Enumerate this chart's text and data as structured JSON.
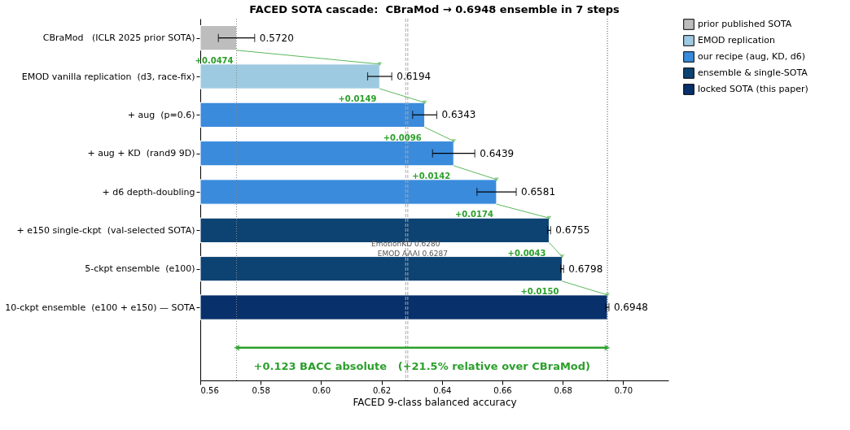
{
  "chart_data": {
    "type": "bar",
    "orientation": "horizontal",
    "title": "FACED SOTA cascade:  CBraMod → 0.6948 ensemble in 7 steps",
    "xlabel": "FACED 9-class balanced accuracy",
    "categories": [
      "CBraMod   (ICLR 2025 prior SOTA)",
      "EMOD vanilla replication  (d3, race-fix)",
      "+ aug  (p=0.6)",
      "+ aug + KD  (rand9 9D)",
      "+ d6 depth-doubling",
      "+ e150 single-ckpt  (val-selected SOTA)",
      "5-ckpt ensemble  (e100)",
      "10-ckpt ensemble  (e100 + e150) — SOTA"
    ],
    "series": [
      {
        "name": "prior published SOTA",
        "color": "#bdbdbd",
        "values": [
          0.572,
          null,
          null,
          null,
          null,
          null,
          null,
          null
        ],
        "errors": [
          0.006,
          null,
          null,
          null,
          null,
          null,
          null,
          null
        ]
      },
      {
        "name": "EMOD replication",
        "color": "#9ecae1",
        "values": [
          null,
          0.6194,
          null,
          null,
          null,
          null,
          null,
          null
        ],
        "errors": [
          null,
          0.004,
          null,
          null,
          null,
          null,
          null,
          null
        ]
      },
      {
        "name": "our recipe (aug, KD, d6)",
        "color": "#3a8bdc",
        "values": [
          null,
          null,
          0.6343,
          0.6439,
          0.6581,
          null,
          null,
          null
        ],
        "errors": [
          null,
          null,
          0.004,
          0.007,
          0.0065,
          null,
          null,
          null
        ]
      },
      {
        "name": "ensemble & single-SOTA",
        "color": "#0d4373",
        "values": [
          null,
          null,
          null,
          null,
          null,
          0.6755,
          0.6798,
          null
        ],
        "errors": [
          null,
          null,
          null,
          null,
          null,
          0.0005,
          0.0005,
          null
        ]
      },
      {
        "name": "locked SOTA (this paper)",
        "color": "#08306b",
        "values": [
          null,
          null,
          null,
          null,
          null,
          null,
          null,
          0.6948
        ],
        "errors": [
          null,
          null,
          null,
          null,
          null,
          null,
          null,
          0.0005
        ]
      }
    ],
    "value_labels": [
      "0.5720",
      "0.6194",
      "0.6343",
      "0.6439",
      "0.6581",
      "0.6755",
      "0.6798",
      "0.6948"
    ],
    "xlim": [
      0.56,
      0.715
    ],
    "xticks": [
      0.56,
      0.58,
      {
        "value": 0.6,
        "label": "0.60"
      },
      0.62,
      0.64,
      0.66,
      0.68,
      {
        "value": 0.7,
        "label": "0.70"
      }
    ],
    "grid": false,
    "legend": "top right",
    "ref_lines": [
      {
        "axis": "x",
        "value": 0.572,
        "label": null,
        "line_style": "dotted",
        "color": "#888888"
      },
      {
        "axis": "x",
        "value": 0.628,
        "label": "EmotionKD 0.6280",
        "line_style": "dashed",
        "color": "#aaaaaa"
      },
      {
        "axis": "x",
        "value": 0.6287,
        "label": "EMOD AAAI 0.6287",
        "line_style": "dashed",
        "color": "#aaaaaa"
      },
      {
        "axis": "x",
        "value": 0.6948,
        "label": null,
        "line_style": "dotted",
        "color": "#3b4a6b"
      }
    ],
    "annotations": [
      {
        "text": "+0.0474",
        "x": 0.572,
        "y": "CBraMod   (ICLR 2025 prior SOTA)"
      },
      {
        "text": "+0.0149",
        "x": 0.6194,
        "y": "EMOD vanilla replication  (d3, race-fix)"
      },
      {
        "text": "+0.0096",
        "x": 0.6343,
        "y": "+ aug  (p=0.6)"
      },
      {
        "text": "+0.0142",
        "x": 0.6439,
        "y": "+ aug + KD  (rand9 9D)"
      },
      {
        "text": "+0.0174",
        "x": 0.6581,
        "y": "+ d6 depth-doubling"
      },
      {
        "text": "+0.0043",
        "x": 0.6755,
        "y": "+ e150 single-ckpt  (val-selected SOTA)"
      },
      {
        "text": "+0.0150",
        "x": 0.6798,
        "y": "5-ckpt ensemble  (e100)"
      },
      "+0.123 BACC absolute   (+21.5% relative over CBraMod)"
    ]
  }
}
